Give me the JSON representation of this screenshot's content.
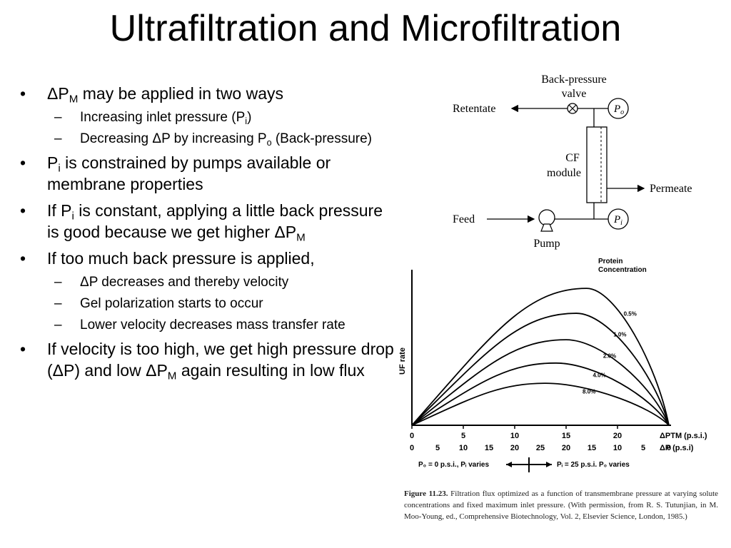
{
  "slide": {
    "title": "Ultrafiltration and Microfiltration"
  },
  "bullets": [
    {
      "pre": "ΔP",
      "sub": "M",
      "post": " may be applied in two ways"
    },
    {
      "pre": "Increasing inlet pressure (P",
      "sub": "i",
      "post": ")"
    },
    {
      "pre": "Decreasing ΔP by increasing P",
      "sub": "o",
      "post": " (Back-pressure)"
    },
    {
      "pre": "P",
      "sub": "i",
      "post": " is constrained by pumps available or membrane properties"
    },
    {
      "pre": "If P",
      "sub": "i",
      "post": " is constant, applying a little back pressure is good because we get higher ΔP",
      "sub2": "M"
    },
    {
      "text": "If too much back pressure is applied,"
    },
    {
      "text": "ΔP decreases and thereby velocity"
    },
    {
      "text": "Gel polarization starts to occur"
    },
    {
      "text": "Lower velocity decreases mass transfer rate"
    },
    {
      "pre": "If velocity is too high, we get high pressure drop (ΔP) and low ΔP",
      "sub": "M",
      "post": " again resulting in low flux"
    }
  ],
  "diagram": {
    "valve_label_1": "Back-pressure",
    "valve_label_2": "valve",
    "retentate": "Retentate",
    "po": "P",
    "po_sub": "o",
    "module_1": "CF",
    "module_2": "module",
    "permeate": "Permeate",
    "feed": "Feed",
    "pi": "P",
    "pi_sub": "i",
    "pump": "Pump"
  },
  "chart_data": {
    "type": "line",
    "title_1": "Protein",
    "title_2": "Concentration",
    "ylabel": "UF rate",
    "xlabel_ptm": "ΔPTM (p.s.i.)",
    "xlabel_dp": "ΔP (p.s.i)",
    "x_ptm_ticks": [
      "0",
      "5",
      "10",
      "15",
      "20"
    ],
    "x_dp_ticks": [
      "0",
      "5",
      "10",
      "15",
      "20",
      "25",
      "20",
      "15",
      "10",
      "5",
      "0"
    ],
    "x_ptm_range": [
      0,
      25
    ],
    "series": [
      {
        "name": "0.5%",
        "peak_ptm": 17,
        "peak_rel": 0.88
      },
      {
        "name": "1.0%",
        "peak_ptm": 16,
        "peak_rel": 0.72
      },
      {
        "name": "2.0%",
        "peak_ptm": 15,
        "peak_rel": 0.55
      },
      {
        "name": "4.0%",
        "peak_ptm": 14,
        "peak_rel": 0.4
      },
      {
        "name": "8.0%",
        "peak_ptm": 13,
        "peak_rel": 0.27
      }
    ],
    "regime_left": "P₀ = 0 p.s.i., Pᵢ varies",
    "regime_right": "Pᵢ = 25 p.s.i.  P₀ varies"
  },
  "caption": {
    "label": "Figure 11.23.",
    "text": "Filtration flux optimized as a function of transmembrane pressure at varying solute concentrations and fixed maximum inlet pressure. (With permission, from R. S. Tutunjian, in M. Moo-Young, ed., Comprehensive Biotechnology, Vol. 2, Elsevier Science, London, 1985.)"
  }
}
